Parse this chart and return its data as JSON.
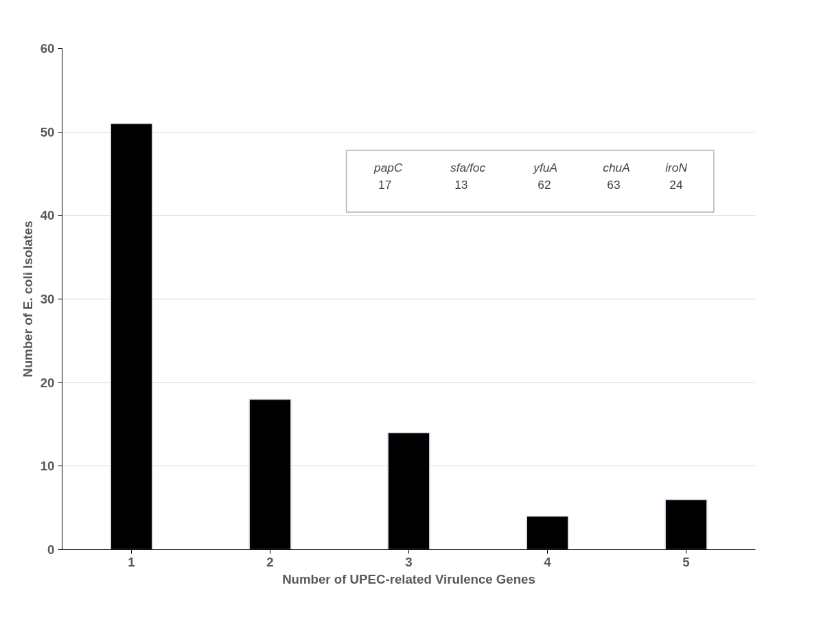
{
  "chart_data": {
    "type": "bar",
    "xlabel": "Number of UPEC-related Virulence Genes",
    "ylabel": "Number of E. coli Isolates",
    "categories": [
      "1",
      "2",
      "3",
      "4",
      "5"
    ],
    "values": [
      51,
      18,
      14,
      4,
      6
    ],
    "color": "#000000",
    "ylim": [
      0,
      60
    ],
    "yticks": [
      0,
      10,
      20,
      30,
      40,
      50,
      60
    ],
    "grid": "y",
    "annotations": [
      "papC",
      "sfa/foc",
      "yfuA",
      "chuA",
      "iroN",
      "17",
      "13",
      "62",
      "63",
      "24"
    ]
  }
}
